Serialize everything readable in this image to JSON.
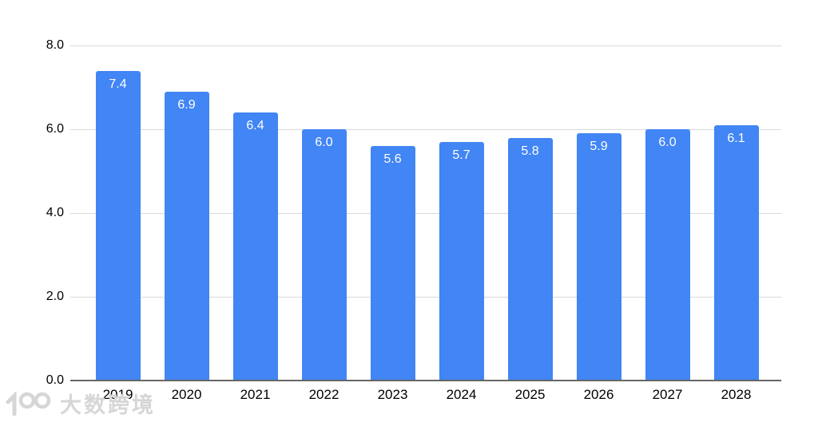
{
  "chart_data": {
    "type": "bar",
    "title": "",
    "xlabel": "",
    "ylabel": "",
    "categories": [
      "2019",
      "2020",
      "2021",
      "2022",
      "2023",
      "2024",
      "2025",
      "2026",
      "2027",
      "2028"
    ],
    "values": [
      7.4,
      6.9,
      6.4,
      6.0,
      5.6,
      5.7,
      5.8,
      5.9,
      6.0,
      6.1
    ],
    "value_labels": [
      "7.4",
      "6.9",
      "6.4",
      "6.0",
      "5.6",
      "5.7",
      "5.8",
      "5.9",
      "6.0",
      "6.1"
    ],
    "ylim": [
      0,
      8
    ],
    "yticks": [
      0.0,
      2.0,
      4.0,
      6.0,
      8.0
    ],
    "ytick_labels": [
      "0.0",
      "2.0",
      "4.0",
      "6.0",
      "8.0"
    ],
    "grid": true,
    "legend": "none",
    "colors": {
      "bar": "#4285f4",
      "value_label": "#ffffff",
      "axis_text": "#000000",
      "gridline": "#d9d9d9",
      "axis_line": "#666666",
      "background": "#ffffff"
    }
  },
  "watermark": {
    "logo": "100-logo",
    "text": "大数跨境",
    "color": "#d6d6d6"
  }
}
